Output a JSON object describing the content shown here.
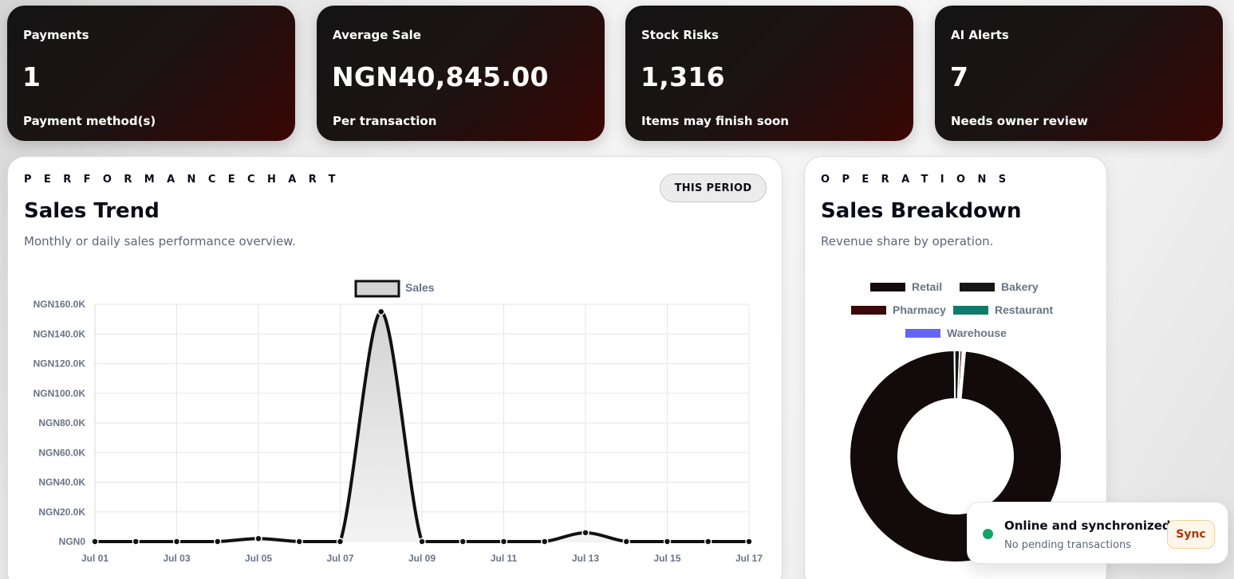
{
  "stats": [
    {
      "label": "Payments",
      "value": "1",
      "sub": "Payment method(s)"
    },
    {
      "label": "Average Sale",
      "value": "NGN40,845.00",
      "sub": "Per transaction"
    },
    {
      "label": "Stock Risks",
      "value": "1,316",
      "sub": "Items may finish soon"
    },
    {
      "label": "AI Alerts",
      "value": "7",
      "sub": "Needs owner review"
    }
  ],
  "performance": {
    "eyebrow": "PERFORMANCECHART",
    "title": "Sales Trend",
    "description": "Monthly or daily sales performance overview.",
    "period_button": "THIS PERIOD"
  },
  "operations": {
    "eyebrow": "OPERATIONS",
    "title": "Sales Breakdown",
    "description": "Revenue share by operation."
  },
  "sync": {
    "title": "Online and synchronized",
    "subtitle": "No pending transactions",
    "button": "Sync",
    "status_color": "#16a36a"
  },
  "chart_data": [
    {
      "type": "area",
      "series": [
        {
          "name": "Sales",
          "values": [
            0,
            0,
            0,
            0,
            2000,
            0,
            0,
            155000,
            0,
            0,
            0,
            0,
            6000,
            0,
            0,
            0,
            0
          ]
        }
      ],
      "x": [
        "Jul 01",
        "Jul 02",
        "Jul 03",
        "Jul 04",
        "Jul 05",
        "Jul 06",
        "Jul 07",
        "Jul 08",
        "Jul 09",
        "Jul 10",
        "Jul 11",
        "Jul 12",
        "Jul 13",
        "Jul 14",
        "Jul 15",
        "Jul 16",
        "Jul 17"
      ],
      "x_tick_labels": [
        "Jul 01",
        "Jul 03",
        "Jul 05",
        "Jul 07",
        "Jul 09",
        "Jul 11",
        "Jul 13",
        "Jul 15",
        "Jul 17"
      ],
      "y_tick_labels": [
        "NGN160.0K",
        "NGN140.0K",
        "NGN120.0K",
        "NGN100.0K",
        "NGN80.0K",
        "NGN60.0K",
        "NGN40.0K",
        "NGN20.0K",
        "NGN0"
      ],
      "ylim": [
        0,
        160000
      ],
      "grid": true,
      "legend_position": "top",
      "line_color": "#111111",
      "fill_color": "#d4d4d4"
    },
    {
      "type": "pie",
      "style": "doughnut",
      "labels": [
        "Retail",
        "Bakery",
        "Pharmacy",
        "Restaurant",
        "Warehouse"
      ],
      "values": [
        98.4,
        0.8,
        0.4,
        0.2,
        0.2
      ],
      "colors": [
        "#130b0b",
        "#161616",
        "#3a0806",
        "#0f7b6c",
        "#6366f1"
      ],
      "legend_position": "top"
    }
  ]
}
